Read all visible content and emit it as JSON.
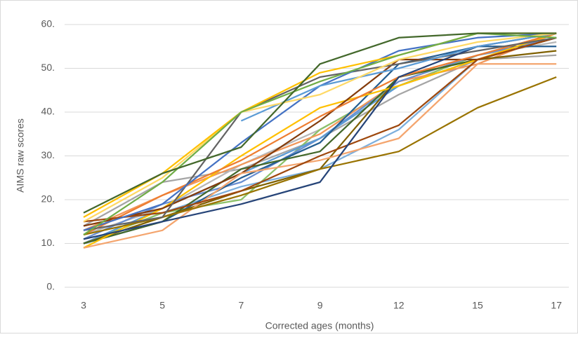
{
  "chart_data": {
    "type": "line",
    "x_label": "Corrected ages (months)",
    "y_label": "AIMS raw scores",
    "categories": [
      "3",
      "5",
      "7",
      "9",
      "12",
      "15",
      "17"
    ],
    "ylim": [
      0,
      60
    ],
    "yticks": [
      {
        "value": 0,
        "label": "0."
      },
      {
        "value": 10,
        "label": "10."
      },
      {
        "value": 20,
        "label": "20."
      },
      {
        "value": 30,
        "label": "30."
      },
      {
        "value": 40,
        "label": "40."
      },
      {
        "value": 50,
        "label": "50."
      },
      {
        "value": 60,
        "label": "60."
      }
    ],
    "grid": true,
    "series": [
      {
        "color": "#a5a5a5",
        "values": [
          14,
          24,
          27,
          34,
          44,
          52,
          53
        ]
      },
      {
        "color": "#b7b7b7",
        "values": [
          12,
          18,
          28,
          36,
          46,
          53,
          56
        ]
      },
      {
        "color": "#7cafdd",
        "values": [
          10,
          17,
          23,
          27,
          36,
          52,
          57
        ]
      },
      {
        "color": "#8cc168",
        "values": [
          10,
          17,
          20,
          36,
          46,
          53,
          57
        ]
      },
      {
        "color": "#f1975a",
        "values": [
          13,
          21,
          28,
          35,
          47,
          51,
          58
        ]
      },
      {
        "color": "#698ed0",
        "values": [
          11,
          19,
          24,
          34,
          47,
          53,
          57
        ]
      },
      {
        "color": "#5b9bd5",
        "values": [
          10,
          18,
          26,
          34,
          46,
          52,
          57
        ]
      },
      {
        "color": "#255e91",
        "values": [
          10,
          15,
          25,
          33,
          51,
          55,
          55
        ]
      },
      {
        "color": "#7f6000",
        "values": [
          10,
          16,
          22,
          27,
          48,
          52,
          54
        ]
      },
      {
        "color": "#43682b",
        "values": [
          10,
          15,
          27,
          31,
          48,
          52,
          57
        ]
      },
      {
        "color": "#ffc000",
        "values": [
          9,
          18,
          30,
          41,
          46,
          52,
          58
        ]
      },
      {
        "color": "#843c0c",
        "values": [
          14,
          18,
          26,
          38,
          52,
          52,
          57
        ]
      },
      {
        "color": "#ed7d31",
        "values": [
          12,
          21,
          29,
          39,
          48,
          53,
          58
        ]
      },
      {
        "color": "#f4a56e",
        "values": [
          9,
          13,
          26,
          29,
          34,
          51,
          51
        ]
      },
      {
        "color": "#997300",
        "values": [
          12,
          16,
          21,
          27,
          31,
          41,
          48
        ]
      },
      {
        "color": "#9e480e",
        "values": [
          15,
          17,
          22,
          30,
          37,
          52,
          57
        ]
      },
      {
        "color": "#636363",
        "values": [
          13,
          16,
          40,
          48,
          51,
          54,
          57
        ]
      },
      {
        "color": "#4472c4",
        "values": [
          13,
          19,
          33,
          46,
          54,
          57,
          58
        ]
      },
      {
        "color": "#264478",
        "values": [
          11,
          15,
          19,
          24,
          48,
          55,
          58
        ]
      },
      {
        "color": "#5b9bd5",
        "values": [
          null,
          null,
          38,
          46,
          50,
          55,
          58
        ]
      },
      {
        "color": "#ffd966",
        "values": [
          15,
          25,
          40,
          44,
          52,
          56,
          58
        ]
      },
      {
        "color": "#ffc000",
        "values": [
          16,
          26,
          40,
          49,
          53,
          58,
          58
        ]
      },
      {
        "color": "#70ad47",
        "values": [
          12,
          24,
          40,
          47,
          53,
          58,
          57
        ]
      },
      {
        "color": "#43682b",
        "values": [
          17,
          26,
          32,
          51,
          57,
          58,
          58
        ]
      }
    ]
  }
}
